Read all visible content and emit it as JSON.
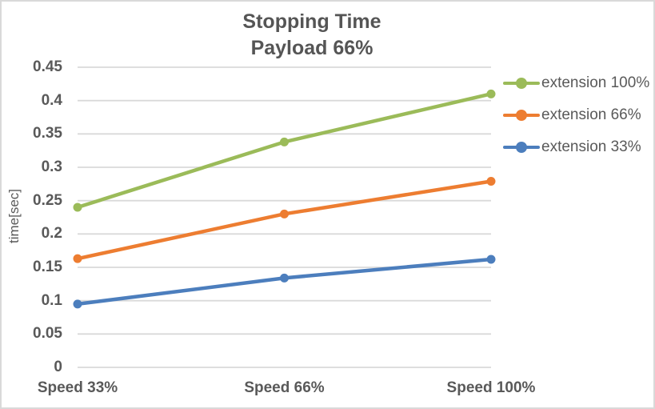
{
  "chart": {
    "title_line1": "Stopping Time",
    "title_line2": "Payload 66%",
    "y_axis_title": "time[sec]"
  },
  "chart_data": {
    "type": "line",
    "title": "Stopping Time Payload 66%",
    "categories": [
      "Speed 33%",
      "Speed 66%",
      "Speed 100%"
    ],
    "series": [
      {
        "name": "extension 100%",
        "values": [
          0.24,
          0.338,
          0.41
        ],
        "color": "#9BBB59"
      },
      {
        "name": "extension 66%",
        "values": [
          0.163,
          0.23,
          0.279
        ],
        "color": "#ED7D31"
      },
      {
        "name": "extension 33%",
        "values": [
          0.095,
          0.134,
          0.162
        ],
        "color": "#4C7EBD"
      }
    ],
    "xlabel": "",
    "ylabel": "time[sec]",
    "ylim": [
      0,
      0.45
    ],
    "ytick_step": 0.05,
    "ytick_labels": [
      "0",
      "0.05",
      "0.1",
      "0.15",
      "0.2",
      "0.25",
      "0.3",
      "0.35",
      "0.4",
      "0.45"
    ],
    "grid": true,
    "legend_position": "right",
    "marker": "circle",
    "colors": {
      "gridline": "#D9D9D9",
      "chart_border": "#D9D9D9",
      "title_text": "#555555",
      "axis_text": "#595959",
      "legend_text": "#595959"
    }
  }
}
